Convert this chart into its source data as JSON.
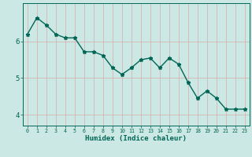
{
  "x": [
    0,
    1,
    2,
    3,
    4,
    5,
    6,
    7,
    8,
    9,
    10,
    11,
    12,
    13,
    14,
    15,
    16,
    17,
    18,
    19,
    20,
    21,
    22,
    23
  ],
  "y": [
    6.2,
    6.65,
    6.45,
    6.2,
    6.1,
    6.1,
    5.72,
    5.72,
    5.62,
    5.28,
    5.1,
    5.28,
    5.5,
    5.55,
    5.28,
    5.55,
    5.38,
    4.88,
    4.45,
    4.65,
    4.45,
    4.15,
    4.15,
    4.15
  ],
  "xlabel": "Humidex (Indice chaleur)",
  "xlim": [
    -0.5,
    23.5
  ],
  "ylim": [
    3.7,
    7.05
  ],
  "yticks": [
    4,
    5,
    6
  ],
  "xticks": [
    0,
    1,
    2,
    3,
    4,
    5,
    6,
    7,
    8,
    9,
    10,
    11,
    12,
    13,
    14,
    15,
    16,
    17,
    18,
    19,
    20,
    21,
    22,
    23
  ],
  "bg_color": "#cce8e4",
  "grid_v_color": "#d8aaaa",
  "grid_h_color": "#d8aaaa",
  "line_color": "#006655",
  "marker": "*",
  "marker_size": 3.5
}
